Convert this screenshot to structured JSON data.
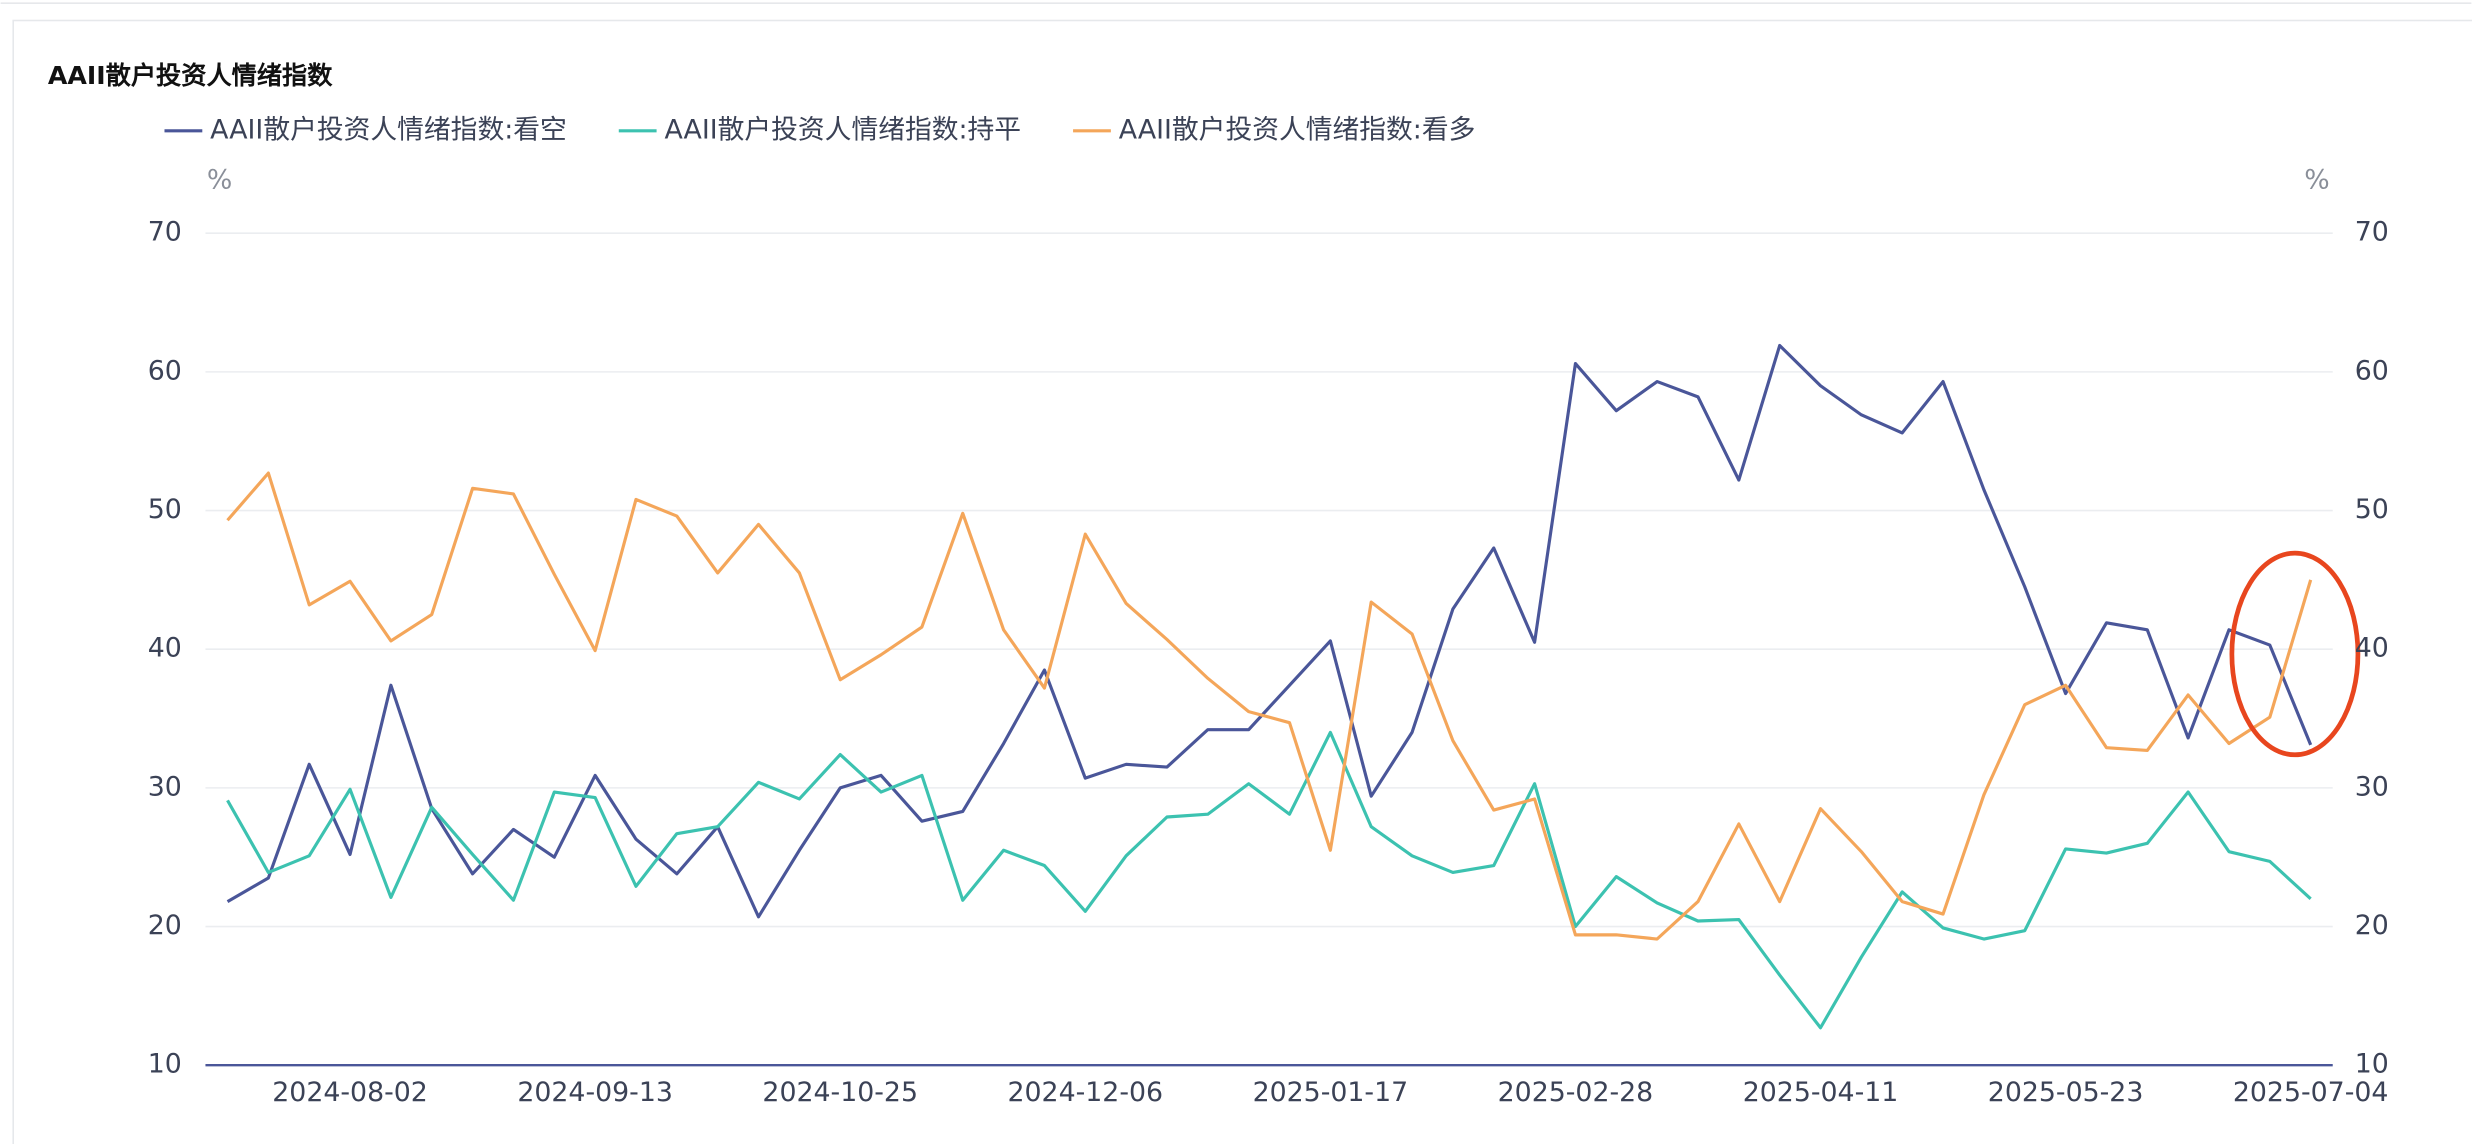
{
  "chart_data": {
    "type": "line",
    "title": "AAII散户投资人情绪指数",
    "ylabel": "%",
    "y2label": "%",
    "x": [
      "2024-07-12",
      "2024-07-19",
      "2024-07-26",
      "2024-08-02",
      "2024-08-09",
      "2024-08-16",
      "2024-08-23",
      "2024-08-30",
      "2024-09-06",
      "2024-09-13",
      "2024-09-20",
      "2024-09-27",
      "2024-10-04",
      "2024-10-11",
      "2024-10-18",
      "2024-10-25",
      "2024-11-01",
      "2024-11-08",
      "2024-11-15",
      "2024-11-22",
      "2024-11-29",
      "2024-12-06",
      "2024-12-13",
      "2024-12-20",
      "2024-12-27",
      "2025-01-03",
      "2025-01-10",
      "2025-01-17",
      "2025-01-24",
      "2025-01-31",
      "2025-02-07",
      "2025-02-14",
      "2025-02-21",
      "2025-02-28",
      "2025-03-07",
      "2025-03-14",
      "2025-03-21",
      "2025-03-28",
      "2025-04-04",
      "2025-04-11",
      "2025-04-18",
      "2025-04-25",
      "2025-05-02",
      "2025-05-09",
      "2025-05-16",
      "2025-05-23",
      "2025-05-30",
      "2025-06-06",
      "2025-06-13",
      "2025-06-20",
      "2025-06-27",
      "2025-07-04"
    ],
    "xticks": [
      "2024-08-02",
      "2024-09-13",
      "2024-10-25",
      "2024-12-06",
      "2025-01-17",
      "2025-02-28",
      "2025-04-11",
      "2025-05-23",
      "2025-07-04"
    ],
    "ylim": [
      10,
      70
    ],
    "yticks": [
      10,
      20,
      30,
      40,
      50,
      60,
      70
    ],
    "y2lim": [
      10,
      70
    ],
    "y2ticks": [
      10,
      20,
      30,
      40,
      50,
      60,
      70
    ],
    "grid": true,
    "legend": "top",
    "series": [
      {
        "name": "AAII散户投资人情绪指数:看空",
        "color": "#4a5699",
        "values": [
          21.8,
          23.5,
          31.7,
          25.2,
          37.4,
          28.5,
          23.8,
          27.0,
          25.0,
          30.9,
          26.3,
          23.8,
          27.2,
          20.7,
          25.5,
          30.0,
          30.9,
          27.6,
          28.3,
          33.2,
          38.5,
          30.7,
          31.7,
          31.5,
          34.2,
          34.2,
          37.4,
          40.6,
          29.4,
          34.0,
          42.9,
          47.3,
          40.5,
          60.6,
          57.2,
          59.3,
          58.2,
          52.2,
          61.9,
          59.0,
          56.9,
          55.6,
          59.3,
          51.5,
          44.5,
          36.8,
          41.9,
          41.4,
          33.6,
          41.4,
          40.3,
          33.1
        ]
      },
      {
        "name": "AAII散户投资人情绪指数:持平",
        "color": "#3cc2b0",
        "values": [
          29.1,
          23.9,
          25.1,
          29.9,
          22.1,
          28.6,
          25.2,
          21.9,
          29.7,
          29.3,
          22.9,
          26.7,
          27.2,
          30.4,
          29.2,
          32.4,
          29.7,
          30.9,
          21.9,
          25.5,
          24.4,
          21.1,
          25.1,
          27.9,
          28.1,
          30.3,
          28.1,
          34.0,
          27.2,
          25.1,
          23.9,
          24.4,
          30.3,
          20.0,
          23.6,
          21.7,
          20.4,
          20.5,
          16.5,
          12.7,
          17.8,
          22.5,
          19.9,
          19.1,
          19.7,
          25.6,
          25.3,
          26.0,
          29.7,
          25.4,
          24.7,
          22.0
        ]
      },
      {
        "name": "AAII散户投资人情绪指数:看多",
        "color": "#f4a65a",
        "values": [
          49.3,
          52.7,
          43.2,
          44.9,
          40.6,
          42.5,
          51.6,
          51.2,
          45.4,
          39.9,
          50.8,
          49.6,
          45.5,
          49.0,
          45.5,
          37.8,
          39.6,
          41.6,
          49.8,
          41.4,
          37.2,
          48.3,
          43.3,
          40.7,
          37.9,
          35.5,
          34.7,
          25.5,
          43.4,
          41.1,
          33.4,
          28.4,
          29.2,
          19.4,
          19.4,
          19.1,
          21.8,
          27.4,
          21.8,
          28.5,
          25.4,
          21.8,
          20.9,
          29.5,
          36.0,
          37.4,
          32.9,
          32.7,
          36.7,
          33.2,
          35.1,
          45.0
        ]
      }
    ]
  }
}
